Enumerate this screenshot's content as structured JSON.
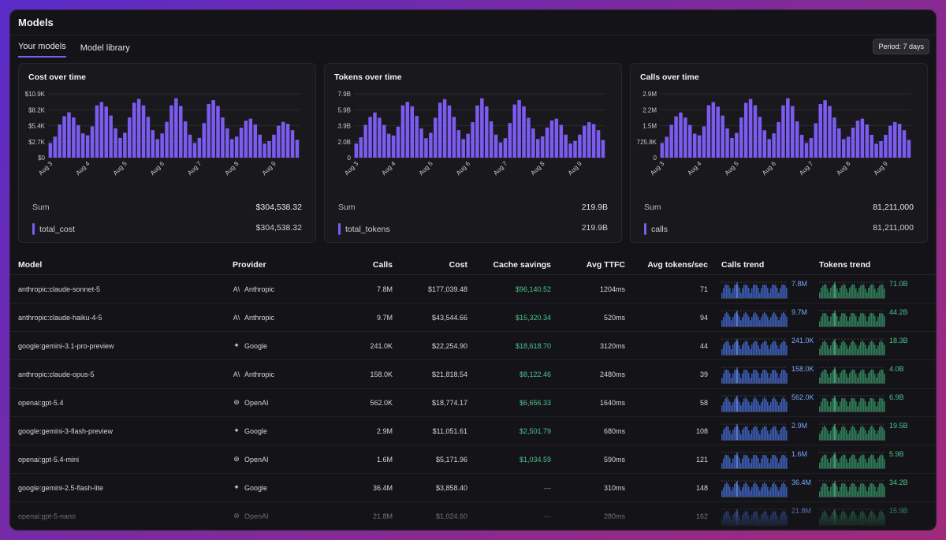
{
  "page": {
    "title": "Models"
  },
  "tabs": [
    {
      "label": "Your models",
      "active": true
    },
    {
      "label": "Model library",
      "active": false
    }
  ],
  "period_label": "Period: 7 days",
  "colors": {
    "accent": "#7c5cf0",
    "positive": "#4cc38a",
    "calls_spark": "#3b5bb0",
    "tokens_spark": "#2f7a57"
  },
  "chart_data": [
    {
      "type": "bar",
      "title": "Cost over time",
      "yticks": [
        "$10.9K",
        "$8.2K",
        "$5.4K",
        "$2.7K",
        "$0"
      ],
      "ylim": [
        0,
        10900
      ],
      "xticks": [
        "Aug 3",
        "Aug 4",
        "Aug 5",
        "Aug 6",
        "Aug 7",
        "Aug 8",
        "Aug 9"
      ],
      "values": [
        2300,
        3300,
        5200,
        6500,
        7100,
        6300,
        5100,
        3800,
        3500,
        4900,
        8200,
        8700,
        8000,
        6600,
        4600,
        3100,
        3900,
        6300,
        8600,
        9200,
        8200,
        6400,
        4300,
        2900,
        3800,
        5600,
        8200,
        9300,
        8100,
        5700,
        3600,
        2300,
        3100,
        5400,
        8400,
        9000,
        8100,
        6300,
        4600,
        2900,
        3300,
        4700,
        5800,
        6100,
        5200,
        3600,
        2200,
        2600,
        3600,
        5000,
        5600,
        5300,
        4300,
        2800
      ],
      "sum_label": "Sum",
      "sum_value": "$304,538.32",
      "series_name": "total_cost",
      "series_value": "$304,538.32"
    },
    {
      "type": "bar",
      "title": "Tokens over time",
      "yticks": [
        "7.9B",
        "5.9B",
        "3.9B",
        "2.0B",
        "0"
      ],
      "ylim": [
        0,
        7900000000
      ],
      "xticks": [
        "Aug 3",
        "Aug 4",
        "Aug 5",
        "Aug 6",
        "Aug 7",
        "Aug 8",
        "Aug 9"
      ],
      "values": [
        1.6,
        2.3,
        3.7,
        4.6,
        5.1,
        4.5,
        3.7,
        2.7,
        2.5,
        3.5,
        5.9,
        6.3,
        5.8,
        4.7,
        3.3,
        2.2,
        2.8,
        4.5,
        6.2,
        6.6,
        5.9,
        4.6,
        3.1,
        2.1,
        2.7,
        4.0,
        5.9,
        6.7,
        5.8,
        4.1,
        2.6,
        1.7,
        2.2,
        3.9,
        6.0,
        6.5,
        5.8,
        4.5,
        3.3,
        2.1,
        2.4,
        3.4,
        4.2,
        4.4,
        3.7,
        2.6,
        1.6,
        1.9,
        2.6,
        3.6,
        4.0,
        3.8,
        3.1,
        2.0
      ],
      "value_unit": "B",
      "sum_label": "Sum",
      "sum_value": "219.9B",
      "series_name": "total_tokens",
      "series_value": "219.9B"
    },
    {
      "type": "bar",
      "title": "Calls over time",
      "yticks": [
        "2.9M",
        "2.2M",
        "1.5M",
        "725.8K",
        "0"
      ],
      "ylim": [
        0,
        2900000
      ],
      "xticks": [
        "Aug 3",
        "Aug 4",
        "Aug 5",
        "Aug 6",
        "Aug 7",
        "Aug 8",
        "Aug 9"
      ],
      "values": [
        0.61,
        0.87,
        1.37,
        1.72,
        1.88,
        1.67,
        1.36,
        1.0,
        0.93,
        1.3,
        2.18,
        2.31,
        2.12,
        1.75,
        1.22,
        0.82,
        1.03,
        1.67,
        2.28,
        2.44,
        2.18,
        1.7,
        1.14,
        0.77,
        1.01,
        1.48,
        2.18,
        2.47,
        2.15,
        1.51,
        0.95,
        0.61,
        0.82,
        1.43,
        2.23,
        2.39,
        2.15,
        1.67,
        1.22,
        0.77,
        0.87,
        1.25,
        1.54,
        1.62,
        1.38,
        0.95,
        0.58,
        0.69,
        0.95,
        1.33,
        1.48,
        1.41,
        1.14,
        0.74
      ],
      "value_unit": "M",
      "sum_label": "Sum",
      "sum_value": "81,211,000",
      "series_name": "calls",
      "series_value": "81,211,000"
    }
  ],
  "table": {
    "headers": [
      "Model",
      "Provider",
      "Calls",
      "Cost",
      "Cache savings",
      "Avg TTFC",
      "Avg tokens/sec",
      "Calls trend",
      "Tokens trend"
    ],
    "rows": [
      {
        "model": "anthropic:claude-sonnet-5",
        "provider": "Anthropic",
        "icon": "anthropic-icon",
        "glyph": "A\\",
        "calls": "7.8M",
        "cost": "$177,039.48",
        "cache": "$96,140.52",
        "ttfc": "1204ms",
        "tps": "71",
        "calls_trend": "7.8M",
        "tokens_trend": "71.0B"
      },
      {
        "model": "anthropic:claude-haiku-4-5",
        "provider": "Anthropic",
        "icon": "anthropic-icon",
        "glyph": "A\\",
        "calls": "9.7M",
        "cost": "$43,544.66",
        "cache": "$15,320.34",
        "ttfc": "520ms",
        "tps": "94",
        "calls_trend": "9.7M",
        "tokens_trend": "44.2B"
      },
      {
        "model": "google:gemini-3.1-pro-preview",
        "provider": "Google",
        "icon": "gemini-sparkle-icon",
        "glyph": "✦",
        "calls": "241.0K",
        "cost": "$22,254.90",
        "cache": "$18,618.70",
        "ttfc": "3120ms",
        "tps": "44",
        "calls_trend": "241.0K",
        "tokens_trend": "18.3B"
      },
      {
        "model": "anthropic:claude-opus-5",
        "provider": "Anthropic",
        "icon": "anthropic-icon",
        "glyph": "A\\",
        "calls": "158.0K",
        "cost": "$21,818.54",
        "cache": "$8,122.46",
        "ttfc": "2480ms",
        "tps": "39",
        "calls_trend": "158.0K",
        "tokens_trend": "4.0B"
      },
      {
        "model": "openai:gpt-5.4",
        "provider": "OpenAI",
        "icon": "openai-icon",
        "glyph": "⊛",
        "calls": "562.0K",
        "cost": "$18,774.17",
        "cache": "$6,656.33",
        "ttfc": "1640ms",
        "tps": "58",
        "calls_trend": "562.0K",
        "tokens_trend": "6.9B"
      },
      {
        "model": "google:gemini-3-flash-preview",
        "provider": "Google",
        "icon": "gemini-sparkle-icon",
        "glyph": "✦",
        "calls": "2.9M",
        "cost": "$11,051.61",
        "cache": "$2,501.79",
        "ttfc": "680ms",
        "tps": "108",
        "calls_trend": "2.9M",
        "tokens_trend": "19.5B"
      },
      {
        "model": "openai:gpt-5.4-mini",
        "provider": "OpenAI",
        "icon": "openai-icon",
        "glyph": "⊛",
        "calls": "1.6M",
        "cost": "$5,171.96",
        "cache": "$1,034.59",
        "ttfc": "590ms",
        "tps": "121",
        "calls_trend": "1.6M",
        "tokens_trend": "5.9B"
      },
      {
        "model": "google:gemini-2.5-flash-lite",
        "provider": "Google",
        "icon": "gemini-sparkle-icon",
        "glyph": "✦",
        "calls": "36.4M",
        "cost": "$3,858.40",
        "cache": "—",
        "ttfc": "310ms",
        "tps": "148",
        "calls_trend": "36.4M",
        "tokens_trend": "34.2B"
      },
      {
        "model": "openai:gpt-5-nano",
        "provider": "OpenAI",
        "icon": "openai-icon",
        "glyph": "⊛",
        "calls": "21.8M",
        "cost": "$1,024.60",
        "cache": "—",
        "ttfc": "280ms",
        "tps": "162",
        "calls_trend": "21.8M",
        "tokens_trend": "15.9B"
      }
    ]
  }
}
